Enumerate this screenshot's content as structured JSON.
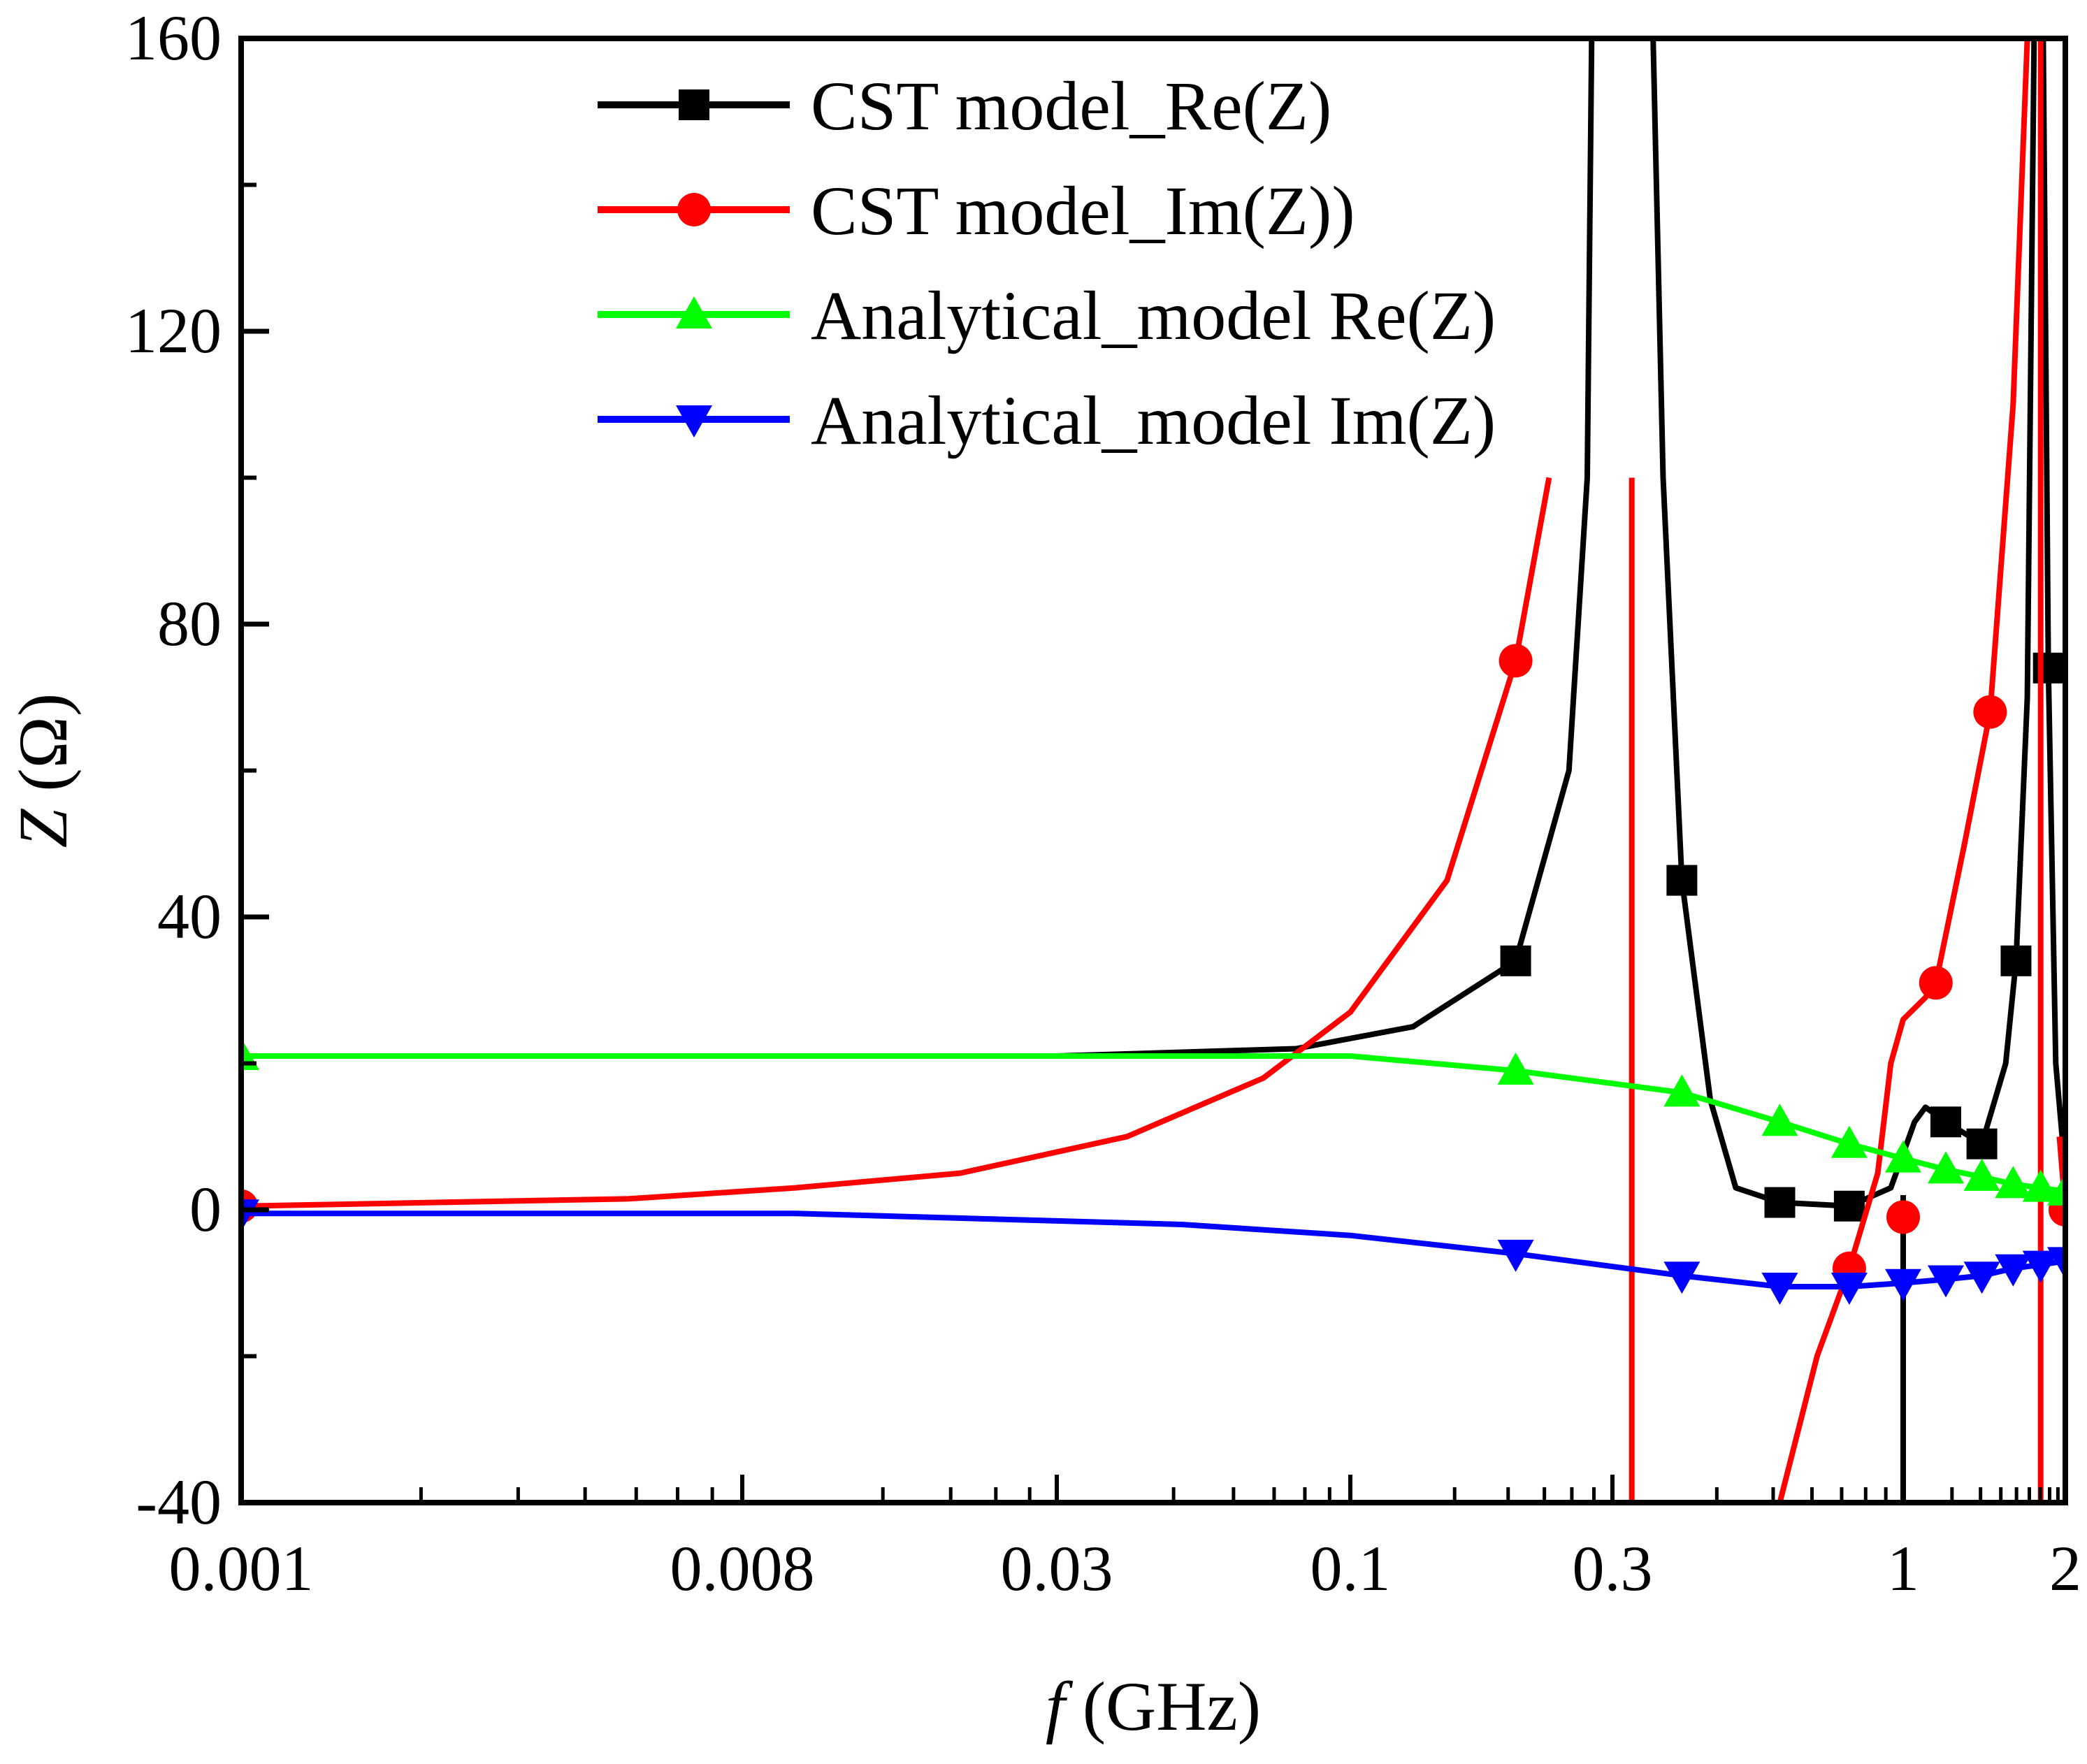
{
  "chart_data": {
    "type": "line",
    "title": "",
    "xlabel_italic": "f",
    "xlabel_rest": " (GHz)",
    "ylabel_italic": "Z",
    "ylabel_rest": " (Ω)",
    "ylim": [
      -40,
      160
    ],
    "xscale": "piecewise-log",
    "x_ticks": [
      0.001,
      0.008,
      0.03,
      0.1,
      0.3,
      1,
      2
    ],
    "x_tick_labels": [
      "0.001",
      "0.008",
      "0.03",
      "0.1",
      "0.3",
      "1",
      "2"
    ],
    "y_ticks": [
      -40,
      0,
      40,
      80,
      120,
      160
    ],
    "y_tick_labels": [
      "-40",
      "0",
      "40",
      "80",
      "120",
      "160"
    ],
    "y_minor_ticks": [
      -20,
      20,
      60,
      100,
      140
    ],
    "grid": false,
    "legend_position": "top-center",
    "series": [
      {
        "name": "CST model_Re(Z)",
        "color": "#000000",
        "marker": "square",
        "points": [
          [
            0.001,
            21
          ],
          [
            0.03,
            21
          ],
          [
            0.08,
            22
          ],
          [
            0.13,
            25
          ],
          [
            0.2,
            34
          ],
          [
            0.25,
            60
          ],
          [
            0.27,
            100
          ],
          [
            0.275,
            160
          ],
          [
            0.355,
            160
          ],
          [
            0.37,
            100
          ],
          [
            0.4,
            45
          ],
          [
            0.45,
            15
          ],
          [
            0.5,
            3
          ],
          [
            0.6,
            1
          ],
          [
            0.8,
            0.5
          ],
          [
            0.95,
            3
          ],
          [
            1.05,
            12
          ],
          [
            1.1,
            14
          ],
          [
            1.2,
            12
          ],
          [
            1.4,
            9
          ],
          [
            1.55,
            20
          ],
          [
            1.62,
            34
          ],
          [
            1.7,
            70
          ],
          [
            1.75,
            160
          ],
          [
            1.82,
            160
          ],
          [
            1.86,
            74
          ],
          [
            1.92,
            20
          ],
          [
            2.0,
            5
          ]
        ],
        "markers_at": [
          [
            0.2,
            34
          ],
          [
            0.4,
            45
          ],
          [
            0.6,
            1
          ],
          [
            0.8,
            0.5
          ],
          [
            1.2,
            12
          ],
          [
            1.4,
            9
          ],
          [
            1.62,
            34
          ],
          [
            1.86,
            74
          ]
        ],
        "extra_segments": [
          [
            [
              1.0,
              2
            ],
            [
              1.0,
              -40
            ]
          ]
        ]
      },
      {
        "name": "CST model_Im(Z))",
        "color": "#ff0000",
        "marker": "circle",
        "points": [
          [
            0.001,
            0.5
          ],
          [
            0.005,
            1.5
          ],
          [
            0.01,
            3
          ],
          [
            0.02,
            5
          ],
          [
            0.04,
            10
          ],
          [
            0.07,
            18
          ],
          [
            0.1,
            27
          ],
          [
            0.15,
            45
          ],
          [
            0.2,
            75
          ],
          [
            0.23,
            100
          ]
        ],
        "markers_at": [
          [
            0.001,
            0.5
          ],
          [
            0.2,
            75
          ],
          [
            0.8,
            -8
          ],
          [
            1.0,
            -1
          ],
          [
            1.15,
            31
          ],
          [
            1.45,
            68
          ],
          [
            2.0,
            0
          ]
        ],
        "extra_segments": [
          [
            [
              0.325,
              100
            ],
            [
              0.325,
              -40
            ]
          ],
          [
            [
              0.6,
              -40
            ],
            [
              0.7,
              -20
            ],
            [
              0.8,
              -8
            ],
            [
              0.9,
              5
            ],
            [
              0.95,
              20
            ],
            [
              1.0,
              26
            ],
            [
              1.1,
              29
            ],
            [
              1.15,
              31
            ],
            [
              1.3,
              50
            ],
            [
              1.45,
              68
            ],
            [
              1.6,
              110
            ],
            [
              1.7,
              160
            ]
          ],
          [
            [
              1.8,
              160
            ],
            [
              1.8,
              -40
            ]
          ],
          [
            [
              1.95,
              10
            ],
            [
              2.0,
              0
            ]
          ]
        ]
      },
      {
        "name": "Analytical_model Re(Z)",
        "color": "#00ff00",
        "marker": "triangle-up",
        "points": [
          [
            0.001,
            21
          ],
          [
            0.03,
            21
          ],
          [
            0.1,
            21
          ],
          [
            0.2,
            19
          ],
          [
            0.4,
            16
          ],
          [
            0.6,
            12
          ],
          [
            0.8,
            9
          ],
          [
            1.0,
            7
          ],
          [
            1.2,
            5.5
          ],
          [
            1.4,
            4.5
          ],
          [
            1.6,
            3.5
          ],
          [
            1.8,
            3
          ],
          [
            2.0,
            2.5
          ]
        ],
        "markers_at": [
          [
            0.001,
            21
          ],
          [
            0.2,
            19
          ],
          [
            0.4,
            16
          ],
          [
            0.6,
            12
          ],
          [
            0.8,
            9
          ],
          [
            1.0,
            7
          ],
          [
            1.2,
            5.5
          ],
          [
            1.4,
            4.5
          ],
          [
            1.6,
            3.5
          ],
          [
            1.8,
            3
          ],
          [
            2.0,
            2.5
          ]
        ]
      },
      {
        "name": "Analytical_model Im(Z)",
        "color": "#0000ff",
        "marker": "triangle-down",
        "points": [
          [
            0.001,
            -0.5
          ],
          [
            0.01,
            -0.5
          ],
          [
            0.05,
            -2
          ],
          [
            0.1,
            -3.5
          ],
          [
            0.2,
            -6
          ],
          [
            0.4,
            -9
          ],
          [
            0.6,
            -10.5
          ],
          [
            0.8,
            -10.5
          ],
          [
            1.0,
            -10
          ],
          [
            1.2,
            -9.5
          ],
          [
            1.4,
            -9
          ],
          [
            1.6,
            -8
          ],
          [
            1.8,
            -7.5
          ],
          [
            2.0,
            -7
          ]
        ],
        "markers_at": [
          [
            0.001,
            -0.5
          ],
          [
            0.2,
            -6
          ],
          [
            0.4,
            -9
          ],
          [
            0.6,
            -10.5
          ],
          [
            0.8,
            -10.5
          ],
          [
            1.0,
            -10
          ],
          [
            1.2,
            -9.5
          ],
          [
            1.4,
            -9
          ],
          [
            1.6,
            -8
          ],
          [
            1.8,
            -7.5
          ],
          [
            2.0,
            -7
          ]
        ]
      }
    ]
  }
}
